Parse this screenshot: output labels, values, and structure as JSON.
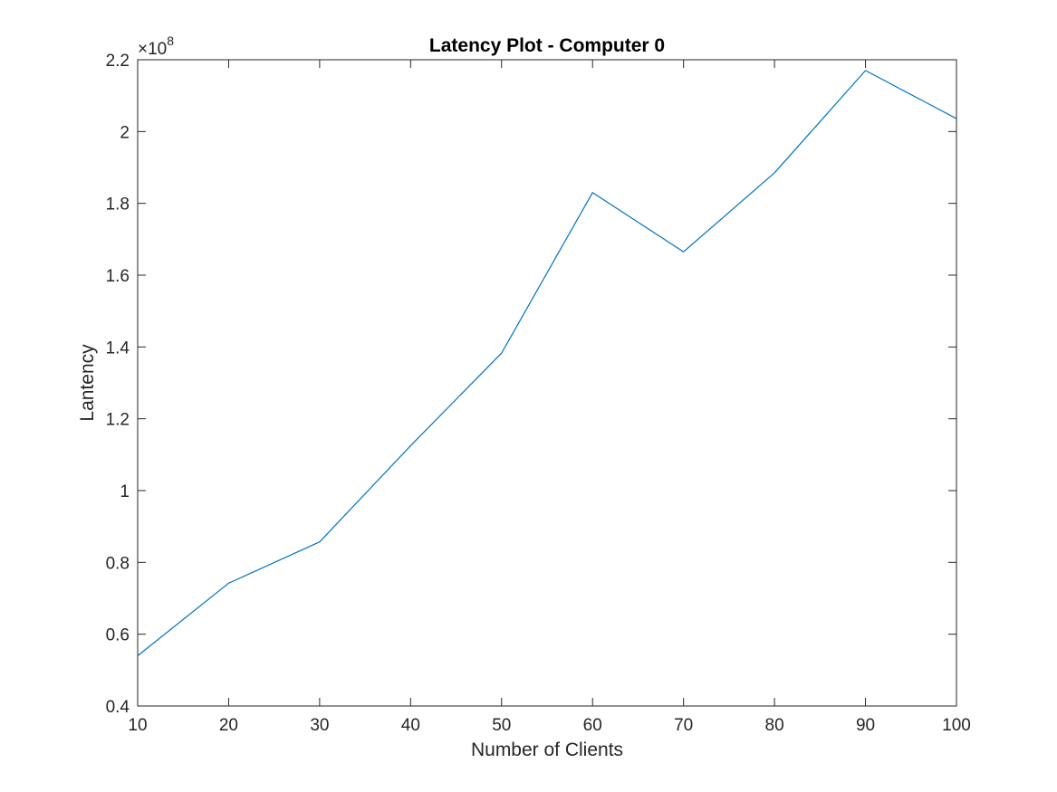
{
  "chart_data": {
    "type": "line",
    "title": "Latency Plot - Computer 0",
    "xlabel": "Number of Clients",
    "ylabel": "Lantency",
    "x": [
      10,
      20,
      30,
      40,
      50,
      60,
      70,
      80,
      90,
      100
    ],
    "series": [
      {
        "values": [
          54000000,
          74200000,
          85700000,
          112500000,
          138300000,
          183000000,
          166500000,
          188500000,
          217000000,
          203600000
        ],
        "color": "#0072BD"
      }
    ],
    "xlim": [
      10,
      100
    ],
    "ylim": [
      40000000,
      220000000
    ],
    "xticks": [
      10,
      20,
      30,
      40,
      50,
      60,
      70,
      80,
      90,
      100
    ],
    "xtick_labels": [
      "10",
      "20",
      "30",
      "40",
      "50",
      "60",
      "70",
      "80",
      "90",
      "100"
    ],
    "yticks": [
      40000000,
      60000000,
      80000000,
      100000000,
      120000000,
      140000000,
      160000000,
      180000000,
      200000000,
      220000000
    ],
    "ytick_labels": [
      "0.4",
      "0.6",
      "0.8",
      "1",
      "1.2",
      "1.4",
      "1.6",
      "1.8",
      "2",
      "2.2"
    ],
    "y_exponent": {
      "base": "×10",
      "power": "8"
    },
    "grid": false,
    "legend": false
  }
}
